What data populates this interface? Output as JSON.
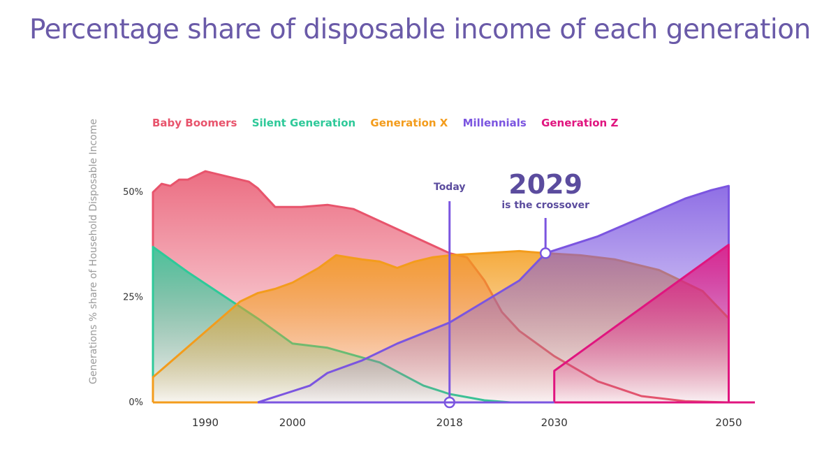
{
  "title": "Percentage share of disposable income of each generation",
  "colors": {
    "title": "#6a5aa8",
    "baby_boomers": "#e8546c",
    "silent_generation": "#2ec999",
    "generation_x": "#f39c1c",
    "millennials": "#7b55e0",
    "generation_z": "#e0157f",
    "annotation": "#5b4c9e"
  },
  "legend": [
    "Baby Boomers",
    "Silent Generation",
    "Generation X",
    "Millennials",
    "Generation Z"
  ],
  "annotations": {
    "today_label": "Today",
    "crossover_year": "2029",
    "crossover_text": "is the crossover"
  },
  "chart_data": {
    "type": "area",
    "title": "Percentage share of disposable income of each generation",
    "xlabel": "",
    "ylabel": "Generations % share of Household Disposable Income",
    "ylim": [
      0,
      60
    ],
    "xlim": [
      1984,
      2053
    ],
    "x_ticks": [
      {
        "value": 1990,
        "label": "1990"
      },
      {
        "value": 2000,
        "label": "2000"
      },
      {
        "value": 2018,
        "label": "2018"
      },
      {
        "value": 2030,
        "label": "2030"
      },
      {
        "value": 2050,
        "label": "2050"
      }
    ],
    "y_ticks": [
      {
        "value": 0,
        "label": "0%"
      },
      {
        "value": 25,
        "label": "25%"
      },
      {
        "value": 50,
        "label": "50%"
      }
    ],
    "series": [
      {
        "name": "Baby Boomers",
        "key": "baby_boomers",
        "x": [
          1984,
          1985,
          1986,
          1987,
          1988,
          1989,
          1990,
          1991,
          1992,
          1993,
          1994,
          1995,
          1996,
          1998,
          2000,
          2001,
          2004,
          2007,
          2018,
          2020,
          2022,
          2024,
          2026,
          2030,
          2035,
          2040,
          2045,
          2050
        ],
        "values": [
          50,
          52,
          51.5,
          53,
          53,
          54,
          55,
          54.5,
          54,
          53.5,
          53,
          52.5,
          51,
          46.5,
          46.5,
          46.5,
          47,
          46,
          35.5,
          34.5,
          29,
          21.5,
          17,
          11,
          5,
          1.5,
          0.3,
          0
        ]
      },
      {
        "name": "Silent Generation",
        "key": "silent_generation",
        "x": [
          1984,
          1988,
          1992,
          1996,
          2000,
          2004,
          2010,
          2015,
          2018,
          2022,
          2025
        ],
        "values": [
          37,
          31,
          25.5,
          20,
          14,
          13,
          9.5,
          4,
          2,
          0.5,
          0
        ]
      },
      {
        "name": "Generation X",
        "key": "generation_x",
        "x": [
          1984,
          1989,
          1994,
          1996,
          1998,
          2000,
          2003,
          2005,
          2008,
          2010,
          2012,
          2014,
          2016,
          2018,
          2022,
          2026,
          2029,
          2033,
          2037,
          2042,
          2047,
          2050
        ],
        "values": [
          6,
          15,
          24,
          26,
          27,
          28.5,
          32,
          35,
          34,
          33.5,
          32,
          33.5,
          34.5,
          35,
          35.5,
          36,
          35.5,
          35,
          34,
          31.5,
          26.5,
          20
        ]
      },
      {
        "name": "Millennials",
        "key": "millennials",
        "x": [
          1996,
          1999,
          2002,
          2004,
          2008,
          2012,
          2018,
          2022,
          2026,
          2029,
          2035,
          2040,
          2045,
          2048,
          2050
        ],
        "values": [
          0,
          2,
          4,
          7,
          10,
          14,
          19,
          24,
          29,
          35.5,
          39.5,
          44,
          48.5,
          50.5,
          51.5
        ]
      },
      {
        "name": "Generation Z",
        "key": "generation_z",
        "x": [
          2030,
          2030,
          2035,
          2040,
          2045,
          2050
        ],
        "values": [
          0,
          7.5,
          15,
          22.5,
          30,
          37.5
        ]
      }
    ],
    "markers": [
      {
        "name": "Today",
        "x": 2018
      },
      {
        "name": "Crossover",
        "x": 2029,
        "y": 35.5
      }
    ]
  }
}
